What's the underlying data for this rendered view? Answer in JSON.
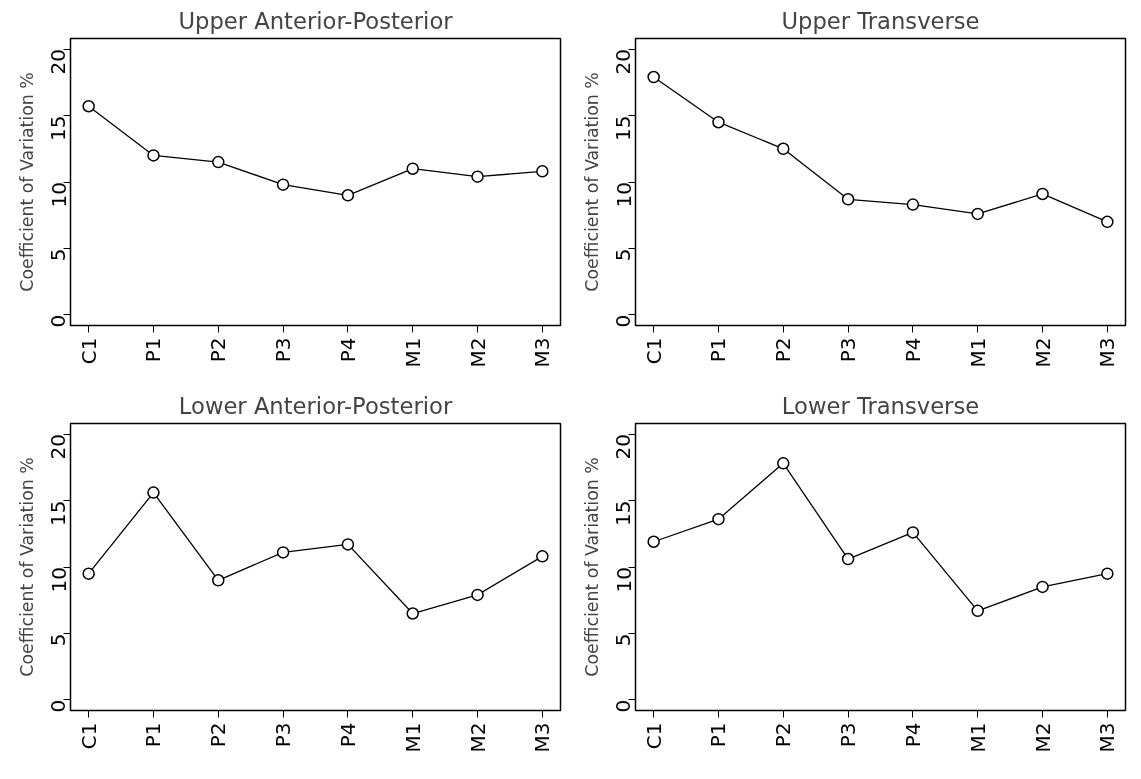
{
  "chart_data": [
    {
      "type": "line",
      "title": "Upper Anterior-Posterior",
      "ylabel": "Coefficient of Variation %",
      "categories": [
        "C1",
        "P1",
        "P2",
        "P3",
        "P4",
        "M1",
        "M2",
        "M3"
      ],
      "color": "#000000",
      "marker": "circle",
      "line_style": "solid",
      "ylim": [
        -0.8,
        20.8
      ],
      "yticks": [
        0,
        5,
        10,
        15,
        20
      ],
      "values": [
        15.7,
        12.0,
        11.5,
        9.8,
        9.0,
        11.0,
        10.4,
        10.8
      ]
    },
    {
      "type": "line",
      "title": "Upper Transverse",
      "ylabel": "Coefficient of Variation %",
      "categories": [
        "C1",
        "P1",
        "P2",
        "P3",
        "P4",
        "M1",
        "M2",
        "M3"
      ],
      "color": "#000000",
      "marker": "circle",
      "line_style": "solid",
      "ylim": [
        -0.8,
        20.8
      ],
      "yticks": [
        0,
        5,
        10,
        15,
        20
      ],
      "values": [
        17.9,
        14.5,
        12.5,
        8.7,
        8.3,
        7.6,
        9.1,
        7.0
      ]
    },
    {
      "type": "line",
      "title": "Lower Anterior-Posterior",
      "ylabel": "Coefficient of Variation %",
      "categories": [
        "C1",
        "P1",
        "P2",
        "P3",
        "P4",
        "M1",
        "M2",
        "M3"
      ],
      "color": "#000000",
      "marker": "circle",
      "line_style": "solid",
      "ylim": [
        -0.8,
        20.8
      ],
      "yticks": [
        0,
        5,
        10,
        15,
        20
      ],
      "values": [
        9.5,
        15.6,
        9.0,
        11.1,
        11.7,
        6.5,
        7.9,
        10.8
      ]
    },
    {
      "type": "line",
      "title": "Lower Transverse",
      "ylabel": "Coefficient of Variation %",
      "categories": [
        "C1",
        "P1",
        "P2",
        "P3",
        "P4",
        "M1",
        "M2",
        "M3"
      ],
      "color": "#000000",
      "marker": "circle",
      "line_style": "solid",
      "ylim": [
        -0.8,
        20.8
      ],
      "yticks": [
        0,
        5,
        10,
        15,
        20
      ],
      "values": [
        11.9,
        13.6,
        17.8,
        10.6,
        12.6,
        6.7,
        8.5,
        9.5
      ]
    }
  ]
}
